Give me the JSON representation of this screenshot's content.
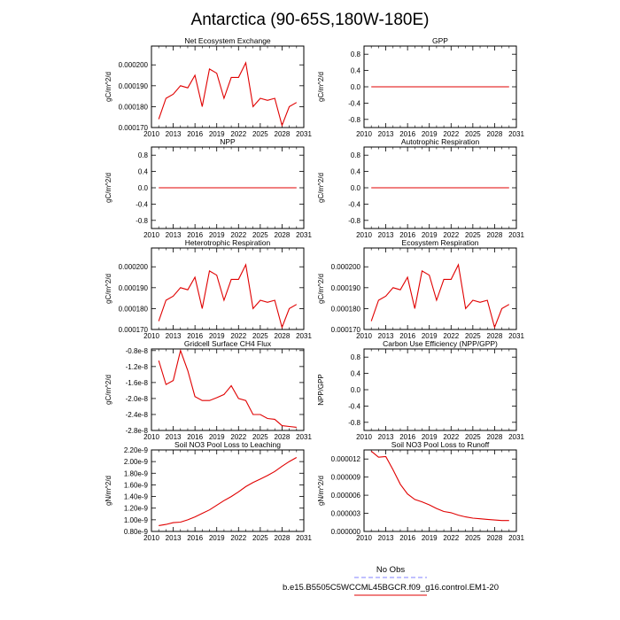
{
  "page_title": "Antarctica (90-65S,180W-180E)",
  "legend": {
    "entries": [
      {
        "label": "No Obs",
        "color": "#8080ff",
        "style": "dashed"
      },
      {
        "label": "b.e15.B5505C5WCCML45BGCR.f09_g16.control.EM1-20",
        "color": "#e00000",
        "style": "solid"
      }
    ]
  },
  "chart_data": [
    {
      "type": "line",
      "title": "Net Ecosystem Exchange",
      "ylabel": "gC/m^2/d",
      "xlim": [
        2010,
        2031
      ],
      "xticks": [
        2010,
        2013,
        2016,
        2019,
        2022,
        2025,
        2028,
        2031
      ],
      "xtick_labels": [
        "2010",
        "2013",
        "2016",
        "2019",
        "2022",
        "2025",
        "2028",
        "2031"
      ],
      "ylim": [
        0.00017,
        0.000209
      ],
      "yticks": [
        0.00017,
        0.00018,
        0.00019,
        0.0002
      ],
      "ytick_labels": [
        "0.000170",
        "0.000180",
        "0.000190",
        "0.000200"
      ],
      "series": [
        {
          "name": "b.e15.B5505C5WCCML45BGCR.f09_g16.control.EM1-20",
          "color": "#e00000",
          "x": [
            2011,
            2012,
            2013,
            2014,
            2015,
            2016,
            2017,
            2018,
            2019,
            2020,
            2021,
            2022,
            2023,
            2024,
            2025,
            2026,
            2027,
            2028,
            2029,
            2030
          ],
          "y": [
            0.000174,
            0.000184,
            0.000186,
            0.00019,
            0.000189,
            0.000195,
            0.00018,
            0.000198,
            0.000196,
            0.000184,
            0.000194,
            0.000194,
            0.000201,
            0.00018,
            0.000184,
            0.000183,
            0.000184,
            0.000171,
            0.00018,
            0.000182
          ]
        }
      ]
    },
    {
      "type": "line",
      "title": "GPP",
      "ylabel": "gC/m^2/d",
      "xlim": [
        2010,
        2031
      ],
      "xticks": [
        2010,
        2013,
        2016,
        2019,
        2022,
        2025,
        2028,
        2031
      ],
      "xtick_labels": [
        "2010",
        "2013",
        "2016",
        "2019",
        "2022",
        "2025",
        "2028",
        "2031"
      ],
      "ylim": [
        -1.0,
        1.0
      ],
      "yticks": [
        -0.8,
        -0.4,
        0.0,
        0.4,
        0.8
      ],
      "ytick_labels": [
        "-0.8",
        "-0.4",
        "0.0",
        "0.4",
        "0.8"
      ],
      "series": [
        {
          "name": "b.e15.B5505C5WCCML45BGCR.f09_g16.control.EM1-20",
          "color": "#e00000",
          "x": [
            2011,
            2030
          ],
          "y": [
            0,
            0
          ]
        }
      ]
    },
    {
      "type": "line",
      "title": "NPP",
      "ylabel": "gC/m^2/d",
      "xlim": [
        2010,
        2031
      ],
      "xticks": [
        2010,
        2013,
        2016,
        2019,
        2022,
        2025,
        2028,
        2031
      ],
      "xtick_labels": [
        "2010",
        "2013",
        "2016",
        "2019",
        "2022",
        "2025",
        "2028",
        "2031"
      ],
      "ylim": [
        -1.0,
        1.0
      ],
      "yticks": [
        -0.8,
        -0.4,
        0.0,
        0.4,
        0.8
      ],
      "ytick_labels": [
        "-0.8",
        "-0.4",
        "0.0",
        "0.4",
        "0.8"
      ],
      "series": [
        {
          "name": "b.e15.B5505C5WCCML45BGCR.f09_g16.control.EM1-20",
          "color": "#e00000",
          "x": [
            2011,
            2030
          ],
          "y": [
            0,
            0
          ]
        }
      ]
    },
    {
      "type": "line",
      "title": "Autotrophic Respiration",
      "ylabel": "gC/m^2/d",
      "xlim": [
        2010,
        2031
      ],
      "xticks": [
        2010,
        2013,
        2016,
        2019,
        2022,
        2025,
        2028,
        2031
      ],
      "xtick_labels": [
        "2010",
        "2013",
        "2016",
        "2019",
        "2022",
        "2025",
        "2028",
        "2031"
      ],
      "ylim": [
        -1.0,
        1.0
      ],
      "yticks": [
        -0.8,
        -0.4,
        0.0,
        0.4,
        0.8
      ],
      "ytick_labels": [
        "-0.8",
        "-0.4",
        "0.0",
        "0.4",
        "0.8"
      ],
      "series": [
        {
          "name": "b.e15.B5505C5WCCML45BGCR.f09_g16.control.EM1-20",
          "color": "#e00000",
          "x": [
            2011,
            2030
          ],
          "y": [
            0,
            0
          ]
        }
      ]
    },
    {
      "type": "line",
      "title": "Heterotrophic Respiration",
      "ylabel": "gC/m^2/d",
      "xlim": [
        2010,
        2031
      ],
      "xticks": [
        2010,
        2013,
        2016,
        2019,
        2022,
        2025,
        2028,
        2031
      ],
      "xtick_labels": [
        "2010",
        "2013",
        "2016",
        "2019",
        "2022",
        "2025",
        "2028",
        "2031"
      ],
      "ylim": [
        0.00017,
        0.000209
      ],
      "yticks": [
        0.00017,
        0.00018,
        0.00019,
        0.0002
      ],
      "ytick_labels": [
        "0.000170",
        "0.000180",
        "0.000190",
        "0.000200"
      ],
      "series": [
        {
          "name": "b.e15.B5505C5WCCML45BGCR.f09_g16.control.EM1-20",
          "color": "#e00000",
          "x": [
            2011,
            2012,
            2013,
            2014,
            2015,
            2016,
            2017,
            2018,
            2019,
            2020,
            2021,
            2022,
            2023,
            2024,
            2025,
            2026,
            2027,
            2028,
            2029,
            2030
          ],
          "y": [
            0.000174,
            0.000184,
            0.000186,
            0.00019,
            0.000189,
            0.000195,
            0.00018,
            0.000198,
            0.000196,
            0.000184,
            0.000194,
            0.000194,
            0.000201,
            0.00018,
            0.000184,
            0.000183,
            0.000184,
            0.000171,
            0.00018,
            0.000182
          ]
        }
      ]
    },
    {
      "type": "line",
      "title": "Ecosystem Respiration",
      "ylabel": "gC/m^2/d",
      "xlim": [
        2010,
        2031
      ],
      "xticks": [
        2010,
        2013,
        2016,
        2019,
        2022,
        2025,
        2028,
        2031
      ],
      "xtick_labels": [
        "2010",
        "2013",
        "2016",
        "2019",
        "2022",
        "2025",
        "2028",
        "2031"
      ],
      "ylim": [
        0.00017,
        0.000209
      ],
      "yticks": [
        0.00017,
        0.00018,
        0.00019,
        0.0002
      ],
      "ytick_labels": [
        "0.000170",
        "0.000180",
        "0.000190",
        "0.000200"
      ],
      "series": [
        {
          "name": "b.e15.B5505C5WCCML45BGCR.f09_g16.control.EM1-20",
          "color": "#e00000",
          "x": [
            2011,
            2012,
            2013,
            2014,
            2015,
            2016,
            2017,
            2018,
            2019,
            2020,
            2021,
            2022,
            2023,
            2024,
            2025,
            2026,
            2027,
            2028,
            2029,
            2030
          ],
          "y": [
            0.000174,
            0.000184,
            0.000186,
            0.00019,
            0.000189,
            0.000195,
            0.00018,
            0.000198,
            0.000196,
            0.000184,
            0.000194,
            0.000194,
            0.000201,
            0.00018,
            0.000184,
            0.000183,
            0.000184,
            0.000171,
            0.00018,
            0.000182
          ]
        }
      ]
    },
    {
      "type": "line",
      "title": "Gridcell Surface CH4 Flux",
      "ylabel": "gC/m^2/d",
      "xlim": [
        2010,
        2031
      ],
      "xticks": [
        2010,
        2013,
        2016,
        2019,
        2022,
        2025,
        2028,
        2031
      ],
      "xtick_labels": [
        "2010",
        "2013",
        "2016",
        "2019",
        "2022",
        "2025",
        "2028",
        "2031"
      ],
      "ylim": [
        -2.8e-08,
        -7.6e-09
      ],
      "yticks": [
        -2.8e-08,
        -2.4e-08,
        -2e-08,
        -1.6e-08,
        -1.2e-08,
        -8e-09
      ],
      "ytick_labels": [
        "-2.8e-8",
        "-2.4e-8",
        "-2.0e-8",
        "-1.6e-8",
        "-1.2e-8",
        "-0.8e-8"
      ],
      "series": [
        {
          "name": "b.e15.B5505C5WCCML45BGCR.f09_g16.control.EM1-20",
          "color": "#e00000",
          "x": [
            2011,
            2012,
            2013,
            2014,
            2015,
            2016,
            2017,
            2018,
            2019,
            2020,
            2021,
            2022,
            2023,
            2024,
            2025,
            2026,
            2027,
            2028,
            2029,
            2030
          ],
          "y": [
            -1.05e-08,
            -1.65e-08,
            -1.55e-08,
            -8e-09,
            -1.3e-08,
            -1.95e-08,
            -2.05e-08,
            -2.05e-08,
            -1.98e-08,
            -1.9e-08,
            -1.68e-08,
            -2e-08,
            -2.05e-08,
            -2.4e-08,
            -2.4e-08,
            -2.5e-08,
            -2.52e-08,
            -2.68e-08,
            -2.7e-08,
            -2.72e-08
          ]
        }
      ]
    },
    {
      "type": "line",
      "title": "Carbon Use Efficiency (NPP/GPP)",
      "ylabel": "NPP/GPP",
      "xlim": [
        2010,
        2031
      ],
      "xticks": [
        2010,
        2013,
        2016,
        2019,
        2022,
        2025,
        2028,
        2031
      ],
      "xtick_labels": [
        "2010",
        "2013",
        "2016",
        "2019",
        "2022",
        "2025",
        "2028",
        "2031"
      ],
      "ylim": [
        -1.0,
        1.0
      ],
      "yticks": [
        -0.8,
        -0.4,
        0.0,
        0.4,
        0.8
      ],
      "ytick_labels": [
        "-0.8",
        "-0.4",
        "0.0",
        "0.4",
        "0.8"
      ],
      "series": []
    },
    {
      "type": "line",
      "title": "Soil NO3 Pool Loss to Leaching",
      "ylabel": "gN/m^2/d",
      "xlim": [
        2010,
        2031
      ],
      "xticks": [
        2010,
        2013,
        2016,
        2019,
        2022,
        2025,
        2028,
        2031
      ],
      "xtick_labels": [
        "2010",
        "2013",
        "2016",
        "2019",
        "2022",
        "2025",
        "2028",
        "2031"
      ],
      "ylim": [
        8e-10,
        2.2e-09
      ],
      "yticks": [
        8e-10,
        1e-09,
        1.2e-09,
        1.4e-09,
        1.6e-09,
        1.8e-09,
        2e-09,
        2.2e-09
      ],
      "ytick_labels": [
        "0.80e-9",
        "1.00e-9",
        "1.20e-9",
        "1.40e-9",
        "1.60e-9",
        "1.80e-9",
        "2.00e-9",
        "2.20e-9"
      ],
      "series": [
        {
          "name": "b.e15.B5505C5WCCML45BGCR.f09_g16.control.EM1-20",
          "color": "#e00000",
          "x": [
            2011,
            2012,
            2013,
            2014,
            2015,
            2016,
            2017,
            2018,
            2019,
            2020,
            2021,
            2022,
            2023,
            2024,
            2025,
            2026,
            2027,
            2028,
            2029,
            2030
          ],
          "y": [
            9e-10,
            9.2e-10,
            9.5e-10,
            9.6e-10,
            1e-09,
            1.05e-09,
            1.11e-09,
            1.17e-09,
            1.25e-09,
            1.33e-09,
            1.4e-09,
            1.48e-09,
            1.57e-09,
            1.64e-09,
            1.7e-09,
            1.76e-09,
            1.83e-09,
            1.92e-09,
            2e-09,
            2.07e-09
          ]
        }
      ]
    },
    {
      "type": "line",
      "title": "Soil NO3 Pool Loss to Runoff",
      "ylabel": "gN/m^2/d",
      "xlim": [
        2010,
        2031
      ],
      "xticks": [
        2010,
        2013,
        2016,
        2019,
        2022,
        2025,
        2028,
        2031
      ],
      "xtick_labels": [
        "2010",
        "2013",
        "2016",
        "2019",
        "2022",
        "2025",
        "2028",
        "2031"
      ],
      "ylim": [
        0.0,
        1.35e-05
      ],
      "yticks": [
        0.0,
        3e-06,
        6e-06,
        9e-06,
        1.2e-05
      ],
      "ytick_labels": [
        "0.000000",
        "0.000003",
        "0.000006",
        "0.000009",
        "0.000012"
      ],
      "series": [
        {
          "name": "b.e15.B5505C5WCCML45BGCR.f09_g16.control.EM1-20",
          "color": "#e00000",
          "x": [
            2011,
            2012,
            2013,
            2014,
            2015,
            2016,
            2017,
            2018,
            2019,
            2020,
            2021,
            2022,
            2023,
            2024,
            2025,
            2026,
            2027,
            2028,
            2029,
            2030
          ],
          "y": [
            1.33e-05,
            1.23e-05,
            1.24e-05,
            1.02e-05,
            7.8e-06,
            6.2e-06,
            5.3e-06,
            4.9e-06,
            4.4e-06,
            3.8e-06,
            3.3e-06,
            3.1e-06,
            2.7e-06,
            2.4e-06,
            2.2e-06,
            2.1e-06,
            2e-06,
            1.9e-06,
            1.8e-06,
            1.8e-06
          ]
        }
      ]
    }
  ]
}
